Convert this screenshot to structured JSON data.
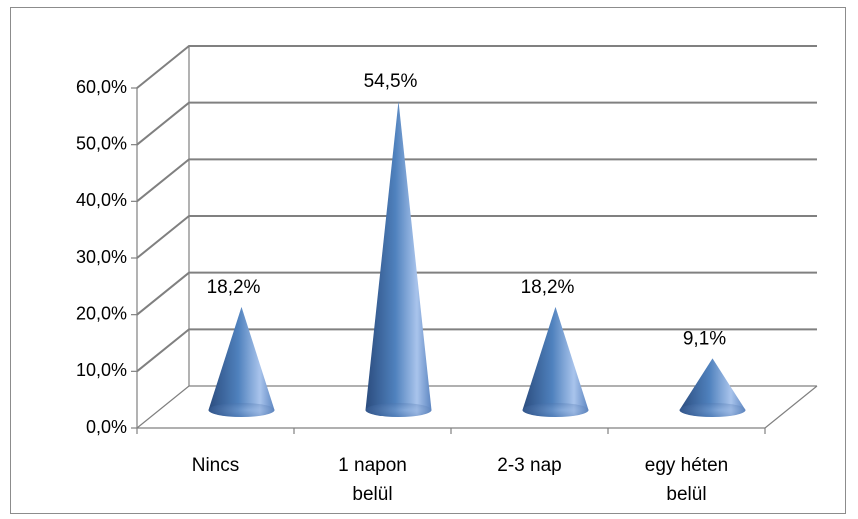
{
  "chart_data": {
    "type": "bar",
    "bar_shape": "cone",
    "categories": [
      [
        "Nincs"
      ],
      [
        "1 napon",
        "belül"
      ],
      [
        "2-3 nap"
      ],
      [
        "egy héten",
        "belül"
      ]
    ],
    "values": [
      18.2,
      54.5,
      18.2,
      9.1
    ],
    "data_labels": [
      "18,2%",
      "54,5%",
      "18,2%",
      "9,1%"
    ],
    "ylim": [
      0,
      60
    ],
    "yticks": [
      "0,0%",
      "10,0%",
      "20,0%",
      "30,0%",
      "40,0%",
      "50,0%",
      "60,0%"
    ],
    "grid": true,
    "legend": "none",
    "colors": {
      "bar": "#4f81bd",
      "bar_dark": "#2b4c7e",
      "bar_light": "#a9c4ec",
      "grid": "#808080"
    }
  }
}
